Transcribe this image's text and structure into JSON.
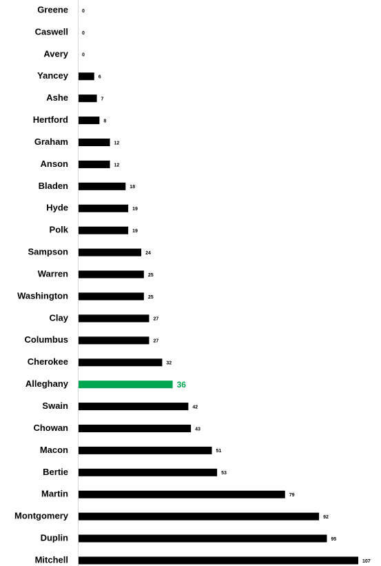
{
  "chart_data": {
    "type": "bar",
    "orientation": "horizontal",
    "categories": [
      "Greene",
      "Caswell",
      "Avery",
      "Yancey",
      "Ashe",
      "Hertford",
      "Graham",
      "Anson",
      "Bladen",
      "Hyde",
      "Polk",
      "Sampson",
      "Warren",
      "Washington",
      "Clay",
      "Columbus",
      "Cherokee",
      "Alleghany",
      "Swain",
      "Chowan",
      "Macon",
      "Bertie",
      "Martin",
      "Montgomery",
      "Duplin",
      "Mitchell"
    ],
    "values": [
      0,
      0,
      0,
      6,
      7,
      8,
      12,
      12,
      18,
      19,
      19,
      24,
      25,
      25,
      27,
      27,
      32,
      36,
      42,
      43,
      51,
      53,
      79,
      92,
      95,
      107
    ],
    "color": "#000000",
    "colors": [
      "#000000",
      "#000000",
      "#000000",
      "#000000",
      "#000000",
      "#000000",
      "#000000",
      "#000000",
      "#000000",
      "#000000",
      "#000000",
      "#000000",
      "#000000",
      "#000000",
      "#000000",
      "#000000",
      "#000000",
      "#00a651",
      "#000000",
      "#000000",
      "#000000",
      "#000000",
      "#000000",
      "#000000",
      "#000000",
      "#000000"
    ]
  }
}
